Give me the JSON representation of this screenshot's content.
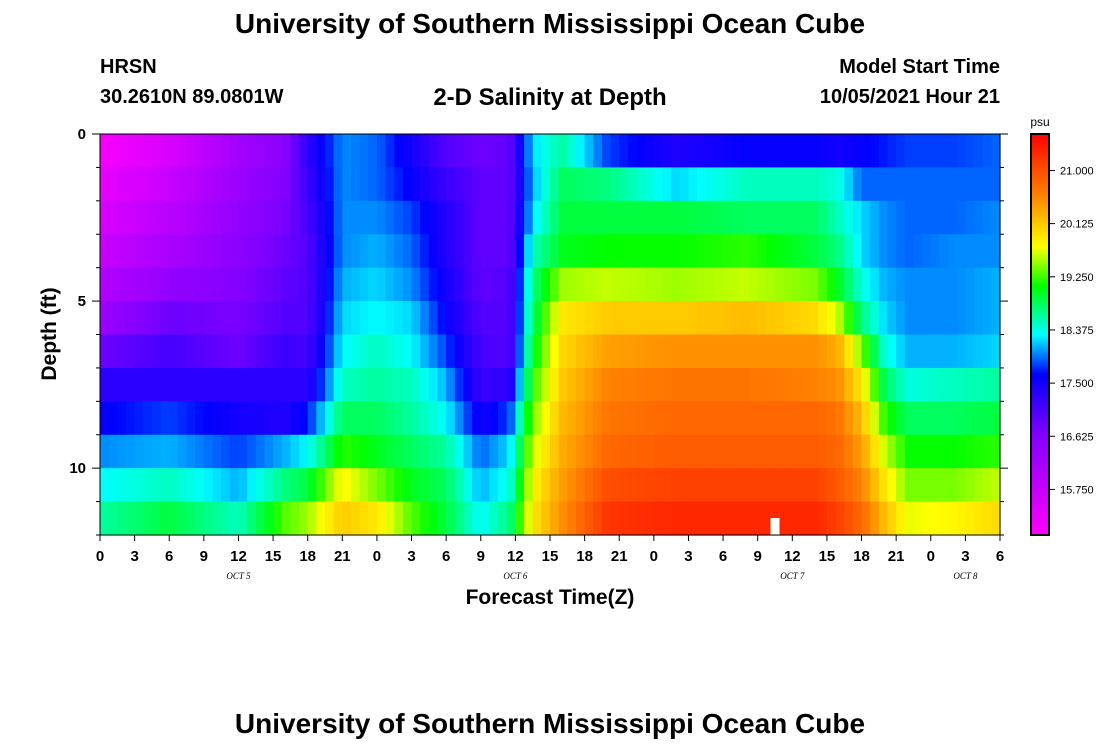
{
  "header": {
    "title": "University of Southern Mississippi Ocean Cube",
    "station": "HRSN",
    "coordinates": "30.2610N  89.0801W",
    "subtitle": "2-D Salinity at Depth",
    "model_start_label": "Model Start Time",
    "model_start_value": "10/05/2021 Hour 21"
  },
  "footer": {
    "title": "University of Southern Mississippi Ocean Cube"
  },
  "chart_data": {
    "type": "heatmap",
    "title": "2-D Salinity at Depth",
    "xlabel": "Forecast Time(Z)",
    "ylabel": "Depth (ft)",
    "xlim_hours": [
      0,
      78
    ],
    "ylim_ft": [
      0,
      12
    ],
    "y_ticks": [
      "0",
      "5",
      "10"
    ],
    "x_tick_labels": [
      "0",
      "3",
      "6",
      "9",
      "12",
      "15",
      "18",
      "21",
      "0",
      "3",
      "6",
      "9",
      "12",
      "15",
      "18",
      "21",
      "0",
      "3",
      "6",
      "9",
      "12",
      "15",
      "18",
      "21",
      "0",
      "3",
      "6"
    ],
    "day_labels": [
      {
        "text": "OCT 5",
        "hour": 12
      },
      {
        "text": "OCT 6",
        "hour": 36
      },
      {
        "text": "OCT 7",
        "hour": 60
      },
      {
        "text": "OCT 8",
        "hour": 75
      }
    ],
    "current_time_hour": 58.5,
    "colorbar": {
      "unit": "psu",
      "range": [
        15.0,
        21.6
      ],
      "tick_labels": [
        "21.000",
        "20.125",
        "19.250",
        "18.375",
        "17.500",
        "16.625",
        "15.750"
      ],
      "tick_values": [
        21.0,
        20.125,
        19.25,
        18.375,
        17.5,
        16.625,
        15.75
      ]
    },
    "depth_levels_ft": [
      0.5,
      1.5,
      2.5,
      3.5,
      4.5,
      5.5,
      6.5,
      7.5,
      8.5,
      9.5,
      10.5,
      11.5
    ],
    "salinity_keyframes": [
      {
        "hour": 0,
        "values": [
          15.1,
          15.3,
          15.5,
          15.7,
          16.0,
          16.3,
          16.8,
          17.3,
          17.6,
          18.0,
          18.3,
          18.6
        ]
      },
      {
        "hour": 6,
        "values": [
          15.5,
          15.7,
          15.9,
          16.1,
          16.4,
          16.8,
          17.1,
          17.3,
          17.8,
          18.1,
          18.5,
          18.9
        ]
      },
      {
        "hour": 12,
        "values": [
          16.2,
          16.3,
          16.4,
          16.5,
          16.6,
          16.7,
          16.8,
          17.3,
          17.5,
          17.8,
          18.1,
          18.5
        ]
      },
      {
        "hour": 16,
        "values": [
          16.5,
          16.6,
          16.7,
          16.8,
          16.9,
          17.0,
          17.2,
          17.3,
          17.4,
          18.1,
          18.7,
          19.3
        ]
      },
      {
        "hour": 18,
        "values": [
          17.3,
          17.2,
          17.1,
          17.0,
          17.0,
          17.0,
          17.1,
          17.3,
          17.7,
          18.3,
          18.9,
          19.5
        ]
      },
      {
        "hour": 21,
        "values": [
          18.0,
          18.0,
          18.0,
          18.0,
          18.1,
          18.2,
          18.3,
          18.5,
          18.8,
          19.2,
          19.8,
          20.1
        ]
      },
      {
        "hour": 24,
        "values": [
          17.9,
          17.9,
          18.0,
          18.1,
          18.2,
          18.3,
          18.5,
          18.6,
          18.8,
          19.0,
          19.4,
          19.9
        ]
      },
      {
        "hour": 27,
        "values": [
          17.5,
          17.6,
          17.8,
          17.9,
          18.0,
          18.2,
          18.3,
          18.5,
          18.6,
          18.8,
          19.0,
          19.3
        ]
      },
      {
        "hour": 30,
        "values": [
          17.0,
          17.2,
          17.4,
          17.4,
          17.5,
          17.6,
          17.8,
          18.1,
          18.3,
          18.6,
          18.8,
          18.9
        ]
      },
      {
        "hour": 33,
        "values": [
          16.8,
          16.9,
          16.9,
          16.9,
          16.9,
          17.0,
          17.1,
          17.2,
          17.5,
          17.9,
          18.1,
          18.3
        ]
      },
      {
        "hour": 35.5,
        "values": [
          16.9,
          16.9,
          16.9,
          16.9,
          17.0,
          17.0,
          17.0,
          17.3,
          17.8,
          18.2,
          18.4,
          18.7
        ]
      },
      {
        "hour": 37.5,
        "values": [
          18.2,
          18.1,
          18.2,
          18.5,
          18.7,
          18.8,
          19.0,
          19.2,
          19.4,
          19.6,
          19.8,
          19.9
        ]
      },
      {
        "hour": 40,
        "values": [
          18.6,
          18.8,
          18.9,
          19.0,
          19.5,
          19.9,
          20.0,
          20.1,
          20.2,
          20.3,
          20.4,
          20.5
        ]
      },
      {
        "hour": 44,
        "values": [
          17.8,
          18.7,
          18.9,
          19.1,
          19.6,
          20.1,
          20.4,
          20.6,
          20.7,
          20.8,
          21.0,
          21.2
        ]
      },
      {
        "hour": 50,
        "values": [
          17.4,
          18.2,
          18.9,
          19.1,
          19.5,
          20.1,
          20.5,
          20.7,
          20.8,
          20.9,
          21.1,
          21.3
        ]
      },
      {
        "hour": 56,
        "values": [
          17.6,
          18.5,
          18.8,
          19.2,
          19.6,
          20.2,
          20.5,
          20.7,
          20.8,
          20.9,
          21.1,
          21.3
        ]
      },
      {
        "hour": 62,
        "values": [
          17.6,
          18.5,
          18.8,
          18.9,
          19.4,
          20.0,
          20.5,
          20.6,
          20.8,
          20.9,
          21.1,
          21.3
        ]
      },
      {
        "hour": 64,
        "values": [
          17.5,
          18.4,
          18.5,
          18.7,
          19.0,
          19.6,
          20.3,
          20.5,
          20.7,
          20.8,
          20.9,
          21.1
        ]
      },
      {
        "hour": 66,
        "values": [
          17.6,
          17.9,
          18.2,
          18.2,
          18.4,
          18.7,
          19.4,
          19.9,
          20.2,
          20.4,
          20.6,
          20.8
        ]
      },
      {
        "hour": 68,
        "values": [
          17.7,
          17.9,
          18.0,
          18.0,
          18.1,
          18.2,
          18.4,
          18.8,
          19.2,
          19.6,
          19.9,
          20.2
        ]
      },
      {
        "hour": 70,
        "values": [
          17.8,
          17.9,
          17.9,
          17.9,
          18.0,
          18.0,
          18.1,
          18.4,
          18.8,
          19.1,
          19.4,
          19.7
        ]
      },
      {
        "hour": 74,
        "values": [
          17.8,
          17.9,
          17.9,
          18.0,
          18.0,
          18.0,
          18.1,
          18.5,
          18.8,
          19.1,
          19.4,
          19.8
        ]
      },
      {
        "hour": 78,
        "values": [
          17.9,
          17.9,
          18.0,
          18.0,
          18.1,
          18.1,
          18.2,
          18.6,
          18.9,
          19.2,
          19.6,
          20.0
        ]
      }
    ]
  }
}
